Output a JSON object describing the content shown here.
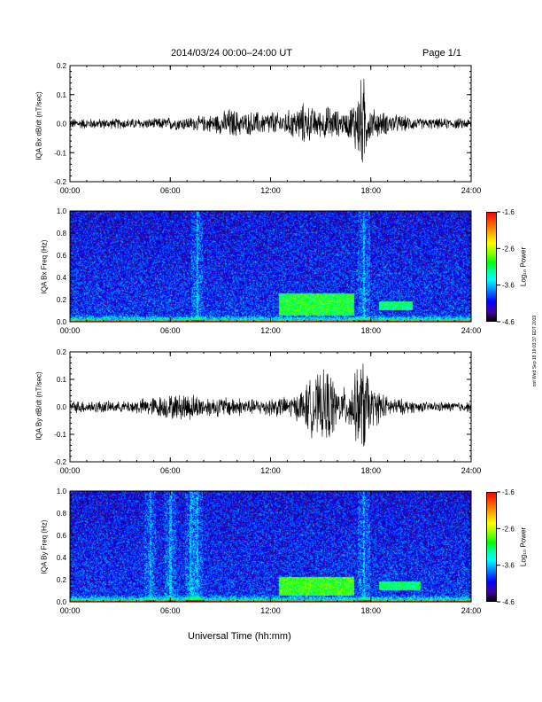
{
  "header": {
    "title": "2014/03/24  00:00–24:00 UT",
    "page": "Page 1/1"
  },
  "side_stamp": "nnt Wed Sep 18 19:03:37 EDT 2019",
  "colorbar": {
    "label": "Log₁₀ Power",
    "ticks": [
      "-1.6",
      "-2.6",
      "-3.6",
      "-4.6"
    ],
    "colors": [
      "#ff0000",
      "#ffff00",
      "#00ff00",
      "#00ffff",
      "#0000ff",
      "#000000"
    ]
  },
  "chart_data": [
    {
      "type": "line",
      "ylabel": "IQA Bx dB/dt (nT/sec)",
      "ylim": [
        -0.2,
        0.2
      ],
      "yticks": [
        "0.2",
        "0.1",
        "0.0",
        "-0.1",
        "-0.2"
      ],
      "x_ticks": [
        "00:00",
        "06:00",
        "12:00",
        "18:00",
        "24:00"
      ],
      "xlim": [
        0,
        24
      ],
      "series": [
        {
          "x": [
            0,
            1,
            2,
            3,
            4,
            5,
            6,
            7,
            8,
            9,
            9.5,
            10,
            10.5,
            11,
            11.5,
            12,
            12.5,
            13,
            13.5,
            14,
            14.5,
            15,
            15.5,
            16,
            16.5,
            17,
            17.3,
            17.6,
            17.8,
            18,
            18.5,
            19,
            20,
            21,
            22,
            23,
            24
          ],
          "amp": [
            0.02,
            0.02,
            0.02,
            0.02,
            0.02,
            0.02,
            0.025,
            0.025,
            0.03,
            0.04,
            0.06,
            0.05,
            0.04,
            0.05,
            0.04,
            0.05,
            0.04,
            0.05,
            0.06,
            0.08,
            0.06,
            0.05,
            0.07,
            0.05,
            0.04,
            0.09,
            0.16,
            0.18,
            0.08,
            0.06,
            0.05,
            0.04,
            0.03,
            0.02,
            0.02,
            0.02,
            0.02
          ]
        }
      ]
    },
    {
      "type": "heatmap",
      "ylabel": "IQA Bx Freq (Hz)",
      "ylim": [
        0,
        1.0
      ],
      "yticks": [
        "1.0",
        "0.8",
        "0.6",
        "0.4",
        "0.2",
        "0.0"
      ],
      "x_ticks": [
        "00:00",
        "06:00",
        "12:00",
        "18:00",
        "24:00"
      ],
      "xlim": [
        0,
        24
      ],
      "zlim": [
        -4.6,
        -1.6
      ],
      "background_log_power": -3.9,
      "enhancements": [
        {
          "t_start": 12.5,
          "t_end": 17.0,
          "f_low": 0.05,
          "f_high": 0.25,
          "log_power": -2.8
        },
        {
          "t_start": 18.5,
          "t_end": 20.5,
          "f_low": 0.1,
          "f_high": 0.18,
          "log_power": -3.0
        }
      ],
      "vertical_streaks": [
        7.6,
        17.6
      ]
    },
    {
      "type": "line",
      "ylabel": "IQA By dB/dt (nT/sec)",
      "ylim": [
        -0.2,
        0.2
      ],
      "yticks": [
        "0.2",
        "0.1",
        "0.0",
        "-0.1",
        "-0.2"
      ],
      "x_ticks": [
        "00:00",
        "06:00",
        "12:00",
        "18:00",
        "24:00"
      ],
      "xlim": [
        0,
        24
      ],
      "series": [
        {
          "x": [
            0,
            1,
            2,
            3,
            4,
            5,
            6,
            6.5,
            7,
            7.5,
            8,
            9,
            10,
            11,
            12,
            13,
            13.5,
            14,
            14.5,
            15,
            15.5,
            16,
            16.5,
            17,
            17.3,
            17.6,
            17.8,
            18,
            18.5,
            19,
            20,
            21,
            22,
            23,
            24
          ],
          "amp": [
            0.025,
            0.025,
            0.025,
            0.02,
            0.03,
            0.04,
            0.05,
            0.05,
            0.06,
            0.05,
            0.04,
            0.04,
            0.04,
            0.03,
            0.04,
            0.04,
            0.05,
            0.08,
            0.12,
            0.13,
            0.16,
            0.07,
            0.08,
            0.12,
            0.18,
            0.2,
            0.14,
            0.08,
            0.07,
            0.04,
            0.03,
            0.02,
            0.02,
            0.02,
            0.02
          ]
        }
      ]
    },
    {
      "type": "heatmap",
      "ylabel": "IQA By Freq (Hz)",
      "xlabel": "Universal Time (hh:mm)",
      "ylim": [
        0,
        1.0
      ],
      "yticks": [
        "1.0",
        "0.8",
        "0.6",
        "0.4",
        "0.2",
        "0.0"
      ],
      "x_ticks": [
        "00:00",
        "06:00",
        "12:00",
        "18:00",
        "24:00"
      ],
      "xlim": [
        0,
        24
      ],
      "zlim": [
        -4.6,
        -1.6
      ],
      "background_log_power": -3.9,
      "enhancements": [
        {
          "t_start": 12.5,
          "t_end": 17.0,
          "f_low": 0.05,
          "f_high": 0.22,
          "log_power": -2.7
        },
        {
          "t_start": 18.5,
          "t_end": 21.0,
          "f_low": 0.1,
          "f_high": 0.18,
          "log_power": -3.0
        }
      ],
      "vertical_streaks": [
        4.8,
        6.0,
        7.2,
        7.6,
        17.6
      ]
    }
  ]
}
